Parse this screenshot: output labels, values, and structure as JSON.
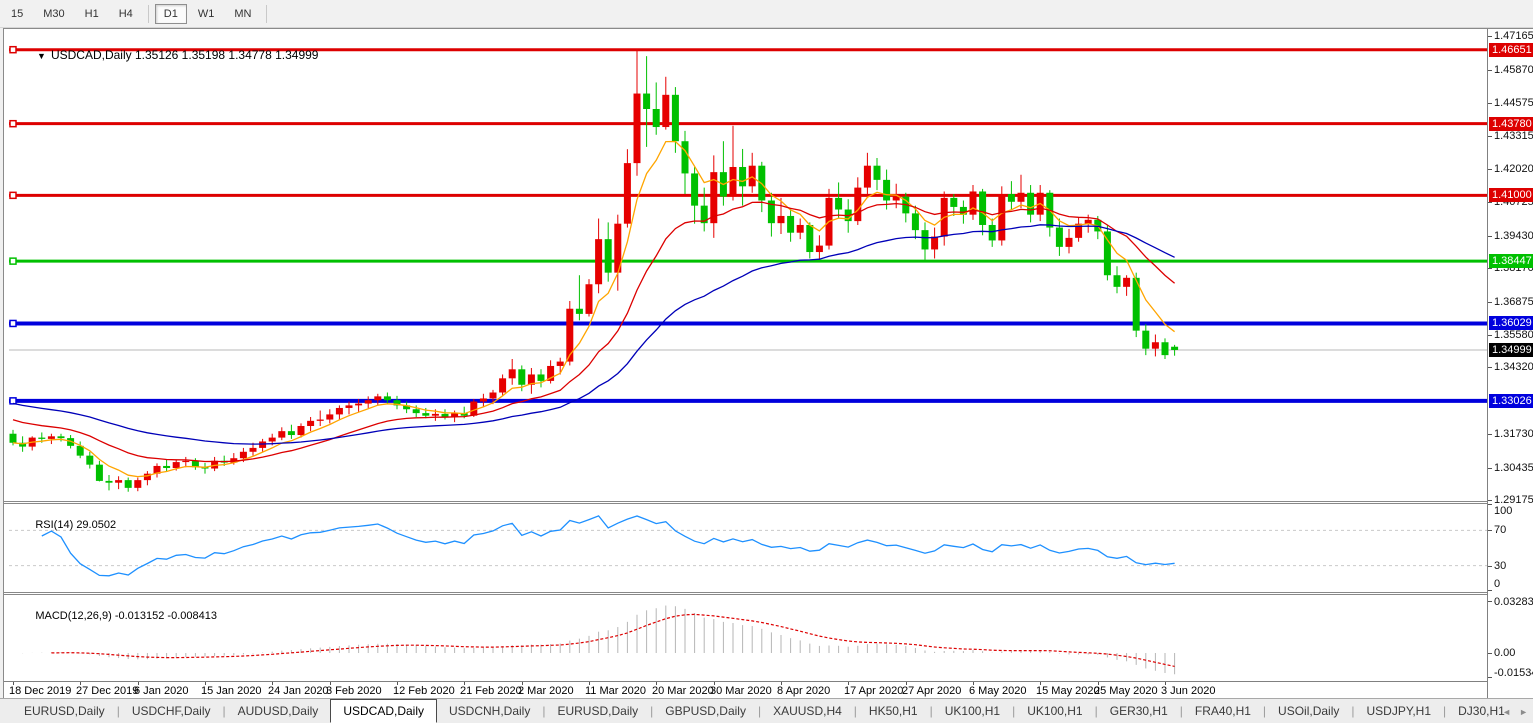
{
  "toolbar": {
    "timeframes": [
      "15",
      "M30",
      "H1",
      "H4",
      "D1",
      "W1",
      "MN"
    ],
    "active": "D1"
  },
  "title": {
    "arrow": "▼",
    "symbol": "USDCAD,Daily",
    "ohlc": "1.35126 1.35198 1.34778 1.34999"
  },
  "price_axis": {
    "ticks": [
      "1.47165",
      "1.45870",
      "1.44575",
      "1.43315",
      "1.42020",
      "1.40725",
      "1.39430",
      "1.38170",
      "1.36875",
      "1.35580",
      "1.34320",
      "1.31730",
      "1.30435",
      "1.29175"
    ],
    "level_labels": [
      {
        "text": "1.46651",
        "bg": "#dd0000"
      },
      {
        "text": "1.43780",
        "bg": "#dd0000"
      },
      {
        "text": "1.41000",
        "bg": "#dd0000"
      },
      {
        "text": "1.38447",
        "bg": "#00c000"
      },
      {
        "text": "1.36029",
        "bg": "#0000dd"
      },
      {
        "text": "1.34999",
        "bg": "#000000"
      },
      {
        "text": "1.33026",
        "bg": "#0000dd"
      }
    ]
  },
  "rsi_panel": {
    "label": "RSI(14)",
    "value": "29.0502",
    "ticks": [
      "100",
      "70",
      "30",
      "0"
    ]
  },
  "macd_panel": {
    "label": "MACD(12,26,9)",
    "value": "-0.013152 -0.008413",
    "ticks": [
      "0.032838",
      "0.00",
      "-0.015342"
    ]
  },
  "tabs": {
    "items": [
      "EURUSD,Daily",
      "USDCHF,Daily",
      "AUDUSD,Daily",
      "USDCAD,Daily",
      "USDCNH,Daily",
      "EURUSD,Daily",
      "GBPUSD,Daily",
      "XAUUSD,H4",
      "HK50,H1",
      "UK100,H1",
      "UK100,H1",
      "GER30,H1",
      "FRA40,H1",
      "USOil,Daily",
      "USDJPY,H1",
      "DJ30,H1"
    ],
    "active_index": 3,
    "scroll_left": "◄",
    "scroll_right": "►"
  },
  "chart_data": {
    "type": "candlestick",
    "symbol": "USDCAD",
    "timeframe": "Daily",
    "last_ohlc": {
      "open": 1.35126,
      "high": 1.35198,
      "low": 1.34778,
      "close": 1.34999
    },
    "y_axis_range": [
      1.2896,
      1.4742
    ],
    "colors": {
      "up_body": "#e60000",
      "down_body": "#00c000",
      "ma_fast": "#ffa500",
      "ma_mid": "#dc0000",
      "ma_slow": "#0000b8",
      "level_red": "#dd0000",
      "level_green": "#00c000",
      "level_blue": "#0000dd",
      "current_line": "#b8b8b8",
      "rsi_line": "#1e90ff",
      "rsi_guide": "#c9c9c9",
      "macd_hist": "#b6b6b6",
      "macd_signal": "#dd0000"
    },
    "levels": [
      {
        "price": 1.46651,
        "color": "level_red",
        "width": 3
      },
      {
        "price": 1.4378,
        "color": "level_red",
        "width": 3
      },
      {
        "price": 1.41,
        "color": "level_red",
        "width": 3
      },
      {
        "price": 1.38447,
        "color": "level_green",
        "width": 3
      },
      {
        "price": 1.36029,
        "color": "level_blue",
        "width": 4
      },
      {
        "price": 1.33026,
        "color": "level_blue",
        "width": 4
      }
    ],
    "current_price": 1.34999,
    "moving_averages": [
      {
        "period": 6,
        "color": "ma_fast",
        "seed": null
      },
      {
        "period": 18,
        "color": "ma_mid",
        "seed": 1.324
      },
      {
        "period": 42,
        "color": "ma_slow",
        "seed": 1.33
      }
    ],
    "rsi": {
      "period": 14,
      "current": 29.0502,
      "guides": [
        70,
        30
      ],
      "range": [
        0,
        100
      ]
    },
    "macd": {
      "fast": 12,
      "slow": 26,
      "signal": 9,
      "macd_value": -0.013152,
      "signal_value": -0.008413,
      "axis_max": 0.032838,
      "axis_min": -0.015342
    },
    "x_labels": [
      {
        "text": "18 Dec 2019",
        "index": 0
      },
      {
        "text": "27 Dec 2019",
        "index": 7
      },
      {
        "text": "6 Jan 2020",
        "index": 13
      },
      {
        "text": "15 Jan 2020",
        "index": 20
      },
      {
        "text": "24 Jan 2020",
        "index": 27
      },
      {
        "text": "3 Feb 2020",
        "index": 33
      },
      {
        "text": "12 Feb 2020",
        "index": 40
      },
      {
        "text": "21 Feb 2020",
        "index": 47
      },
      {
        "text": "2 Mar 2020",
        "index": 53
      },
      {
        "text": "11 Mar 2020",
        "index": 60
      },
      {
        "text": "20 Mar 2020",
        "index": 67
      },
      {
        "text": "30 Mar 2020",
        "index": 73
      },
      {
        "text": "8 Apr 2020",
        "index": 80
      },
      {
        "text": "17 Apr 2020",
        "index": 87
      },
      {
        "text": "27 Apr 2020",
        "index": 93
      },
      {
        "text": "6 May 2020",
        "index": 100
      },
      {
        "text": "15 May 2020",
        "index": 107
      },
      {
        "text": "25 May 2020",
        "index": 113
      },
      {
        "text": "3 Jun 2020",
        "index": 120
      }
    ],
    "candles": [
      [
        1.3175,
        1.319,
        1.313,
        1.314
      ],
      [
        1.314,
        1.3165,
        1.3105,
        1.3125
      ],
      [
        1.3125,
        1.3165,
        1.311,
        1.316
      ],
      [
        1.316,
        1.318,
        1.314,
        1.3155
      ],
      [
        1.3155,
        1.3175,
        1.3135,
        1.3165
      ],
      [
        1.3165,
        1.3175,
        1.3145,
        1.3158
      ],
      [
        1.3158,
        1.317,
        1.3118,
        1.3128
      ],
      [
        1.3128,
        1.3145,
        1.308,
        1.309
      ],
      [
        1.309,
        1.3105,
        1.304,
        1.3055
      ],
      [
        1.3055,
        1.307,
        1.299,
        1.2992
      ],
      [
        1.2992,
        1.3015,
        1.2955,
        1.2985
      ],
      [
        1.2985,
        1.301,
        1.296,
        1.2995
      ],
      [
        1.2995,
        1.3005,
        1.295,
        1.2965
      ],
      [
        1.2965,
        1.3005,
        1.2952,
        1.2995
      ],
      [
        1.2995,
        1.303,
        1.2975,
        1.302
      ],
      [
        1.302,
        1.306,
        1.3005,
        1.305
      ],
      [
        1.305,
        1.3075,
        1.303,
        1.3042
      ],
      [
        1.3042,
        1.3075,
        1.3032,
        1.3065
      ],
      [
        1.3065,
        1.3085,
        1.3045,
        1.307
      ],
      [
        1.307,
        1.308,
        1.3035,
        1.3045
      ],
      [
        1.3045,
        1.3062,
        1.302,
        1.304
      ],
      [
        1.304,
        1.3085,
        1.303,
        1.307
      ],
      [
        1.307,
        1.309,
        1.305,
        1.3063
      ],
      [
        1.3063,
        1.31,
        1.3055,
        1.308
      ],
      [
        1.308,
        1.312,
        1.3065,
        1.3105
      ],
      [
        1.3105,
        1.314,
        1.309,
        1.312
      ],
      [
        1.312,
        1.3155,
        1.3105,
        1.3145
      ],
      [
        1.3145,
        1.3175,
        1.313,
        1.316
      ],
      [
        1.316,
        1.32,
        1.315,
        1.3185
      ],
      [
        1.3185,
        1.321,
        1.3155,
        1.317
      ],
      [
        1.317,
        1.3215,
        1.316,
        1.3205
      ],
      [
        1.3205,
        1.324,
        1.3185,
        1.3225
      ],
      [
        1.3225,
        1.3265,
        1.3205,
        1.323
      ],
      [
        1.323,
        1.327,
        1.3215,
        1.325
      ],
      [
        1.325,
        1.3285,
        1.323,
        1.3275
      ],
      [
        1.3275,
        1.33,
        1.325,
        1.3285
      ],
      [
        1.3285,
        1.331,
        1.326,
        1.3292
      ],
      [
        1.3292,
        1.332,
        1.3275,
        1.3305
      ],
      [
        1.3305,
        1.333,
        1.3285,
        1.332
      ],
      [
        1.332,
        1.3335,
        1.329,
        1.3305
      ],
      [
        1.3305,
        1.3322,
        1.327,
        1.3285
      ],
      [
        1.3285,
        1.33,
        1.3255,
        1.327
      ],
      [
        1.327,
        1.3285,
        1.324,
        1.3255
      ],
      [
        1.3255,
        1.3275,
        1.3235,
        1.3245
      ],
      [
        1.3245,
        1.327,
        1.3225,
        1.3252
      ],
      [
        1.3252,
        1.327,
        1.323,
        1.324
      ],
      [
        1.324,
        1.3265,
        1.322,
        1.3255
      ],
      [
        1.3255,
        1.328,
        1.3235,
        1.3245
      ],
      [
        1.3245,
        1.331,
        1.324,
        1.33
      ],
      [
        1.33,
        1.333,
        1.328,
        1.3312
      ],
      [
        1.3312,
        1.3345,
        1.329,
        1.3335
      ],
      [
        1.3335,
        1.3405,
        1.332,
        1.339
      ],
      [
        1.339,
        1.3465,
        1.3365,
        1.3425
      ],
      [
        1.3425,
        1.344,
        1.334,
        1.3365
      ],
      [
        1.3365,
        1.343,
        1.333,
        1.3405
      ],
      [
        1.3405,
        1.3425,
        1.3355,
        1.338
      ],
      [
        1.338,
        1.346,
        1.337,
        1.3438
      ],
      [
        1.3438,
        1.347,
        1.3405,
        1.3455
      ],
      [
        1.3455,
        1.369,
        1.344,
        1.366
      ],
      [
        1.366,
        1.379,
        1.3615,
        1.364
      ],
      [
        1.364,
        1.3775,
        1.363,
        1.3755
      ],
      [
        1.3755,
        1.401,
        1.372,
        1.393
      ],
      [
        1.393,
        1.3995,
        1.3765,
        1.38
      ],
      [
        1.38,
        1.4025,
        1.373,
        1.399
      ],
      [
        1.399,
        1.4279,
        1.3975,
        1.4225
      ],
      [
        1.4225,
        1.4668,
        1.4176,
        1.4495
      ],
      [
        1.4495,
        1.464,
        1.4288,
        1.4435
      ],
      [
        1.4435,
        1.4538,
        1.4335,
        1.4365
      ],
      [
        1.4365,
        1.456,
        1.4355,
        1.449
      ],
      [
        1.449,
        1.452,
        1.4265,
        1.431
      ],
      [
        1.431,
        1.435,
        1.4105,
        1.4185
      ],
      [
        1.4185,
        1.421,
        1.399,
        1.406
      ],
      [
        1.406,
        1.413,
        1.396,
        1.3992
      ],
      [
        1.3992,
        1.4255,
        1.3935,
        1.419
      ],
      [
        1.419,
        1.431,
        1.406,
        1.4095
      ],
      [
        1.4095,
        1.437,
        1.408,
        1.421
      ],
      [
        1.421,
        1.428,
        1.406,
        1.4135
      ],
      [
        1.4135,
        1.4265,
        1.411,
        1.4215
      ],
      [
        1.4215,
        1.423,
        1.4035,
        1.408
      ],
      [
        1.408,
        1.411,
        1.394,
        1.3992
      ],
      [
        1.3992,
        1.409,
        1.395,
        1.402
      ],
      [
        1.402,
        1.405,
        1.392,
        1.3955
      ],
      [
        1.3955,
        1.401,
        1.393,
        1.3985
      ],
      [
        1.3985,
        1.3995,
        1.3855,
        1.388
      ],
      [
        1.388,
        1.3945,
        1.385,
        1.3905
      ],
      [
        1.3905,
        1.4125,
        1.389,
        1.409
      ],
      [
        1.409,
        1.415,
        1.401,
        1.4045
      ],
      [
        1.4045,
        1.4085,
        1.3955,
        1.4
      ],
      [
        1.4,
        1.417,
        1.3985,
        1.413
      ],
      [
        1.413,
        1.4265,
        1.4105,
        1.4215
      ],
      [
        1.4215,
        1.4245,
        1.412,
        1.416
      ],
      [
        1.416,
        1.42,
        1.4045,
        1.408
      ],
      [
        1.408,
        1.4145,
        1.405,
        1.4095
      ],
      [
        1.4095,
        1.411,
        1.3995,
        1.403
      ],
      [
        1.403,
        1.406,
        1.393,
        1.3965
      ],
      [
        1.3965,
        1.3995,
        1.385,
        1.389
      ],
      [
        1.389,
        1.3975,
        1.3855,
        1.394
      ],
      [
        1.394,
        1.4115,
        1.3905,
        1.409
      ],
      [
        1.409,
        1.4105,
        1.402,
        1.4055
      ],
      [
        1.4055,
        1.408,
        1.399,
        1.4025
      ],
      [
        1.4025,
        1.414,
        1.4005,
        1.4115
      ],
      [
        1.4115,
        1.4125,
        1.3945,
        1.3985
      ],
      [
        1.3985,
        1.401,
        1.39,
        1.3925
      ],
      [
        1.3925,
        1.4135,
        1.3905,
        1.4105
      ],
      [
        1.4105,
        1.4155,
        1.4045,
        1.4075
      ],
      [
        1.4075,
        1.418,
        1.405,
        1.411
      ],
      [
        1.411,
        1.414,
        1.3995,
        1.4025
      ],
      [
        1.4025,
        1.414,
        1.4,
        1.411
      ],
      [
        1.411,
        1.412,
        1.394,
        1.3975
      ],
      [
        1.3975,
        1.401,
        1.3865,
        1.39
      ],
      [
        1.39,
        1.397,
        1.3875,
        1.3935
      ],
      [
        1.3935,
        1.4015,
        1.392,
        1.399
      ],
      [
        1.399,
        1.4025,
        1.3955,
        1.4005
      ],
      [
        1.4005,
        1.402,
        1.393,
        1.396
      ],
      [
        1.396,
        1.3985,
        1.377,
        1.379
      ],
      [
        1.379,
        1.3825,
        1.372,
        1.3745
      ],
      [
        1.3745,
        1.379,
        1.371,
        1.378
      ],
      [
        1.378,
        1.38,
        1.355,
        1.3575
      ],
      [
        1.3575,
        1.36,
        1.348,
        1.3505
      ],
      [
        1.3505,
        1.356,
        1.3475,
        1.353
      ],
      [
        1.353,
        1.3545,
        1.3465,
        1.348
      ],
      [
        1.35126,
        1.35198,
        1.34778,
        1.34999
      ]
    ]
  }
}
